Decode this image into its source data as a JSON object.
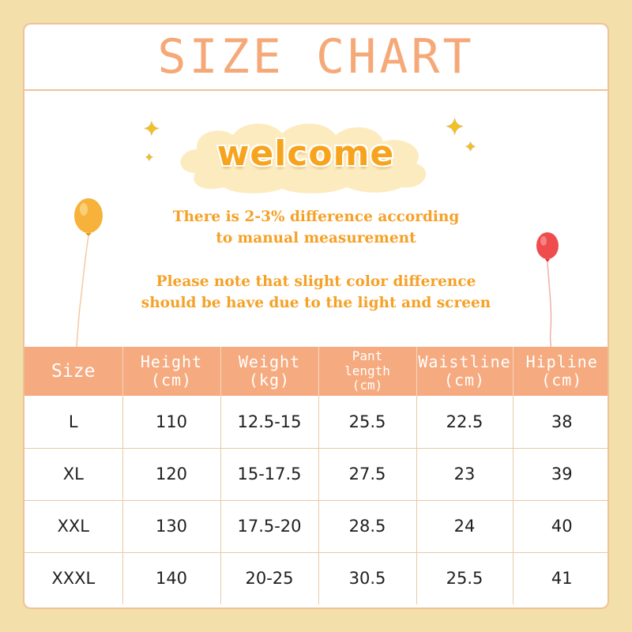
{
  "header": {
    "title": "SIZE CHART"
  },
  "banner": {
    "welcome": "welcome"
  },
  "notes": {
    "line1": "There is 2-3% difference according",
    "line2": "to manual measurement",
    "line3": "Please note that slight color difference",
    "line4": "should be have due to the light and screen"
  },
  "table": {
    "headers": [
      {
        "top": "Size",
        "bottom": ""
      },
      {
        "top": "Height",
        "bottom": "(cm)"
      },
      {
        "top": "Weight",
        "bottom": "(kg)"
      },
      {
        "top": "Pant",
        "mid": "length",
        "bottom": "(cm)"
      },
      {
        "top": "Waistline",
        "bottom": "(cm)"
      },
      {
        "top": "Hipline",
        "bottom": "(cm)"
      }
    ],
    "rows": [
      [
        "L",
        "110",
        "12.5-15",
        "25.5",
        "22.5",
        "38"
      ],
      [
        "XL",
        "120",
        "15-17.5",
        "27.5",
        "23",
        "39"
      ],
      [
        "XXL",
        "130",
        "17.5-20",
        "28.5",
        "24",
        "40"
      ],
      [
        "XXXL",
        "140",
        "20-25",
        "30.5",
        "25.5",
        "41"
      ]
    ]
  },
  "colors": {
    "page_background": "#f3dfaa",
    "title": "#f5a978",
    "welcome_text": "#f7a41c",
    "note_text": "#f5a127",
    "table_header": "#f5aa7f",
    "border": "#eec39a"
  },
  "decorations": [
    "sparkle-icon",
    "cloud-icon",
    "orange-balloon-icon",
    "red-balloon-icon"
  ]
}
